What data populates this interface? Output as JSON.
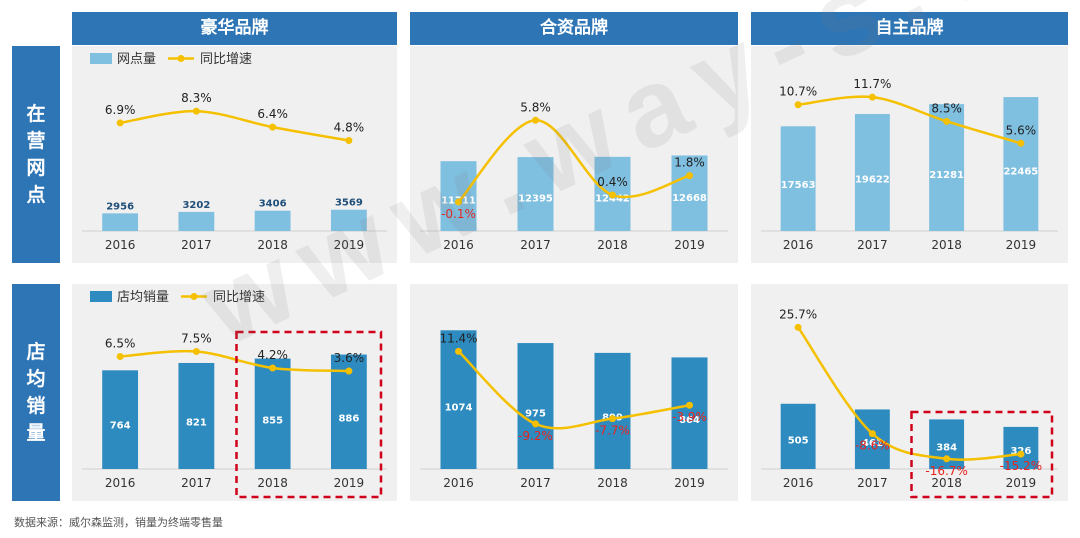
{
  "columns": [
    "豪华品牌",
    "合资品牌",
    "自主品牌"
  ],
  "rows": [
    "在营网点",
    "店均销量"
  ],
  "watermark": "www.way-s.cn",
  "source": "数据来源：威尔森监测，销量为终端零售量",
  "legends": {
    "top": {
      "bar": "网点量",
      "line": "同比增速"
    },
    "bottom": {
      "bar": "店均销量",
      "line": "同比增速"
    }
  },
  "colors": {
    "header": "#2e75b6",
    "bar_top": "#7fbfe0",
    "bar_bottom": "#2e8bc0",
    "line": "#f5c000",
    "negative_label": "#e8231e",
    "highlight_box": "#d0021b"
  },
  "chart_data": [
    {
      "type": "bar",
      "row": "在营网点",
      "column": "豪华品牌",
      "categories": [
        "2016",
        "2017",
        "2018",
        "2019"
      ],
      "series": [
        {
          "name": "网点量",
          "values": [
            2956,
            3202,
            3406,
            3569
          ]
        },
        {
          "name": "同比增速",
          "type": "line",
          "values": [
            6.9,
            8.3,
            6.4,
            4.8
          ]
        }
      ],
      "value_labels": [
        "2956",
        "3202",
        "3406",
        "3569"
      ],
      "rate_labels": [
        "6.9%",
        "8.3%",
        "6.4%",
        "4.8%"
      ],
      "ylim_bar": [
        0,
        26000
      ],
      "ylim_line": [
        -6,
        12.5
      ]
    },
    {
      "type": "bar",
      "row": "在营网点",
      "column": "合资品牌",
      "categories": [
        "2016",
        "2017",
        "2018",
        "2019"
      ],
      "series": [
        {
          "name": "网点量",
          "values": [
            11711,
            12395,
            12442,
            12668
          ]
        },
        {
          "name": "同比增速",
          "type": "line",
          "values": [
            -0.1,
            5.8,
            0.4,
            1.8
          ]
        }
      ],
      "value_labels": [
        "11711",
        "12395",
        "12442",
        "12668"
      ],
      "rate_labels": [
        "-0.1%",
        "5.8%",
        "0.4%",
        "1.8%"
      ],
      "ylim_bar": [
        0,
        26000
      ],
      "ylim_line": [
        -2.2,
        9
      ]
    },
    {
      "type": "bar",
      "row": "在营网点",
      "column": "自主品牌",
      "categories": [
        "2016",
        "2017",
        "2018",
        "2019"
      ],
      "series": [
        {
          "name": "网点量",
          "values": [
            17563,
            19622,
            21281,
            22465
          ]
        },
        {
          "name": "同比增速",
          "type": "line",
          "values": [
            10.7,
            11.7,
            8.5,
            5.6
          ]
        }
      ],
      "value_labels": [
        "17563",
        "19622",
        "21281",
        "22465"
      ],
      "rate_labels": [
        "10.7%",
        "11.7%",
        "8.5%",
        "5.6%"
      ],
      "ylim_bar": [
        0,
        26000
      ],
      "ylim_line": [
        -6,
        14.5
      ]
    },
    {
      "type": "bar",
      "row": "店均销量",
      "column": "豪华品牌",
      "categories": [
        "2016",
        "2017",
        "2018",
        "2019"
      ],
      "series": [
        {
          "name": "店均销量",
          "values": [
            764,
            821,
            855,
            886
          ]
        },
        {
          "name": "同比增速",
          "type": "line",
          "values": [
            6.5,
            7.5,
            4.2,
            3.6
          ]
        }
      ],
      "value_labels": [
        "764",
        "821",
        "855",
        "886"
      ],
      "rate_labels": [
        "6.5%",
        "7.5%",
        "4.2%",
        "3.6%"
      ],
      "highlight": [
        "2018",
        "2019"
      ],
      "ylim_bar": [
        0,
        1200
      ],
      "ylim_line": [
        -16,
        15
      ]
    },
    {
      "type": "bar",
      "row": "店均销量",
      "column": "合资品牌",
      "categories": [
        "2016",
        "2017",
        "2018",
        "2019"
      ],
      "series": [
        {
          "name": "店均销量",
          "values": [
            1074,
            975,
            899,
            864
          ]
        },
        {
          "name": "同比增速",
          "type": "line",
          "values": [
            11.4,
            -9.2,
            -7.7,
            -3.9
          ]
        }
      ],
      "value_labels": [
        "1074",
        "975",
        "899",
        "864"
      ],
      "rate_labels": [
        "11.4%",
        "-9.2%",
        "-7.7%",
        "-3.9%"
      ],
      "ylim_bar": [
        0,
        1200
      ],
      "ylim_line": [
        -22,
        22
      ]
    },
    {
      "type": "bar",
      "row": "店均销量",
      "column": "自主品牌",
      "categories": [
        "2016",
        "2017",
        "2018",
        "2019"
      ],
      "series": [
        {
          "name": "店均销量",
          "values": [
            505,
            461,
            384,
            326
          ]
        },
        {
          "name": "同比增速",
          "type": "line",
          "values": [
            25.7,
            -8.6,
            -16.7,
            -15.2
          ]
        }
      ],
      "value_labels": [
        "505",
        "461",
        "384",
        "326"
      ],
      "rate_labels": [
        "25.7%",
        "-8.6%",
        "-16.7%",
        "-15.2%"
      ],
      "highlight": [
        "2018",
        "2019"
      ],
      "ylim_bar": [
        0,
        1200
      ],
      "ylim_line": [
        -20,
        30
      ]
    }
  ]
}
